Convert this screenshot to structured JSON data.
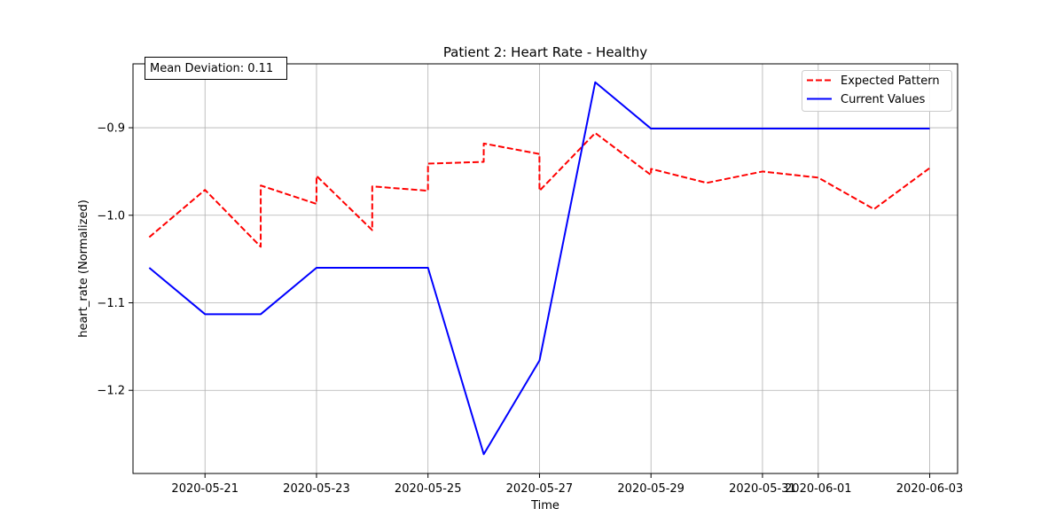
{
  "chart_data": {
    "type": "line",
    "title": "Patient 2: Heart Rate - Healthy",
    "xlabel": "Time",
    "ylabel": "heart_rate (Normalized)",
    "annotation": "Mean Deviation: 0.11",
    "legend_position": "top-right",
    "grid": true,
    "xlim": [
      "2020-05-19T17:00",
      "2020-06-03T12:00"
    ],
    "ylim": [
      -1.295,
      -0.827
    ],
    "x_ticks": [
      {
        "date": "2020-05-21",
        "label": "2020-05-21"
      },
      {
        "date": "2020-05-23",
        "label": "2020-05-23"
      },
      {
        "date": "2020-05-25",
        "label": "2020-05-25"
      },
      {
        "date": "2020-05-27",
        "label": "2020-05-27"
      },
      {
        "date": "2020-05-29",
        "label": "2020-05-29"
      },
      {
        "date": "2020-05-31",
        "label": "2020-05-31"
      },
      {
        "date": "2020-06-01",
        "label": "2020-06-01"
      },
      {
        "date": "2020-06-03",
        "label": "2020-06-03"
      }
    ],
    "y_ticks": [
      {
        "value": -0.9,
        "label": "−0.9"
      },
      {
        "value": -1.0,
        "label": "−1.0"
      },
      {
        "value": -1.1,
        "label": "−1.1"
      },
      {
        "value": -1.2,
        "label": "−1.2"
      }
    ],
    "series": [
      {
        "name": "Expected Pattern",
        "color": "#ff0000",
        "style": "dashed",
        "points": [
          {
            "x": "2020-05-20T00:00",
            "y": -1.025
          },
          {
            "x": "2020-05-21T00:00",
            "y": -0.971
          },
          {
            "x": "2020-05-21T23:59",
            "y": -1.036
          },
          {
            "x": "2020-05-22T00:00",
            "y": -0.966
          },
          {
            "x": "2020-05-22T23:59",
            "y": -0.987
          },
          {
            "x": "2020-05-23T00:00",
            "y": -0.955
          },
          {
            "x": "2020-05-23T23:59",
            "y": -1.017
          },
          {
            "x": "2020-05-24T00:00",
            "y": -0.967
          },
          {
            "x": "2020-05-24T23:59",
            "y": -0.972
          },
          {
            "x": "2020-05-25T00:00",
            "y": -0.941
          },
          {
            "x": "2020-05-25T23:59",
            "y": -0.939
          },
          {
            "x": "2020-05-26T00:00",
            "y": -0.918
          },
          {
            "x": "2020-05-26T23:59",
            "y": -0.93
          },
          {
            "x": "2020-05-27T00:00",
            "y": -0.972
          },
          {
            "x": "2020-05-28T00:00",
            "y": -0.906
          },
          {
            "x": "2020-05-29T00:00",
            "y": -0.954
          },
          {
            "x": "2020-05-29T00:01",
            "y": -0.947
          },
          {
            "x": "2020-05-30T00:00",
            "y": -0.963
          },
          {
            "x": "2020-05-31T00:00",
            "y": -0.95
          },
          {
            "x": "2020-06-01T00:00",
            "y": -0.957
          },
          {
            "x": "2020-06-02T00:00",
            "y": -0.993
          },
          {
            "x": "2020-06-03T00:00",
            "y": -0.946
          }
        ]
      },
      {
        "name": "Current Values",
        "color": "#0000ff",
        "style": "solid",
        "points": [
          {
            "x": "2020-05-20T00:00",
            "y": -1.06
          },
          {
            "x": "2020-05-21T00:00",
            "y": -1.113
          },
          {
            "x": "2020-05-22T00:00",
            "y": -1.113
          },
          {
            "x": "2020-05-23T00:00",
            "y": -1.06
          },
          {
            "x": "2020-05-24T00:00",
            "y": -1.06
          },
          {
            "x": "2020-05-25T00:00",
            "y": -1.06
          },
          {
            "x": "2020-05-26T00:00",
            "y": -1.273
          },
          {
            "x": "2020-05-27T00:00",
            "y": -1.166
          },
          {
            "x": "2020-05-28T00:00",
            "y": -0.848
          },
          {
            "x": "2020-05-29T00:00",
            "y": -0.901
          },
          {
            "x": "2020-05-30T00:00",
            "y": -0.901
          },
          {
            "x": "2020-05-31T00:00",
            "y": -0.901
          },
          {
            "x": "2020-06-01T00:00",
            "y": -0.901
          },
          {
            "x": "2020-06-02T00:00",
            "y": -0.901
          },
          {
            "x": "2020-06-03T00:00",
            "y": -0.901
          }
        ]
      }
    ]
  }
}
